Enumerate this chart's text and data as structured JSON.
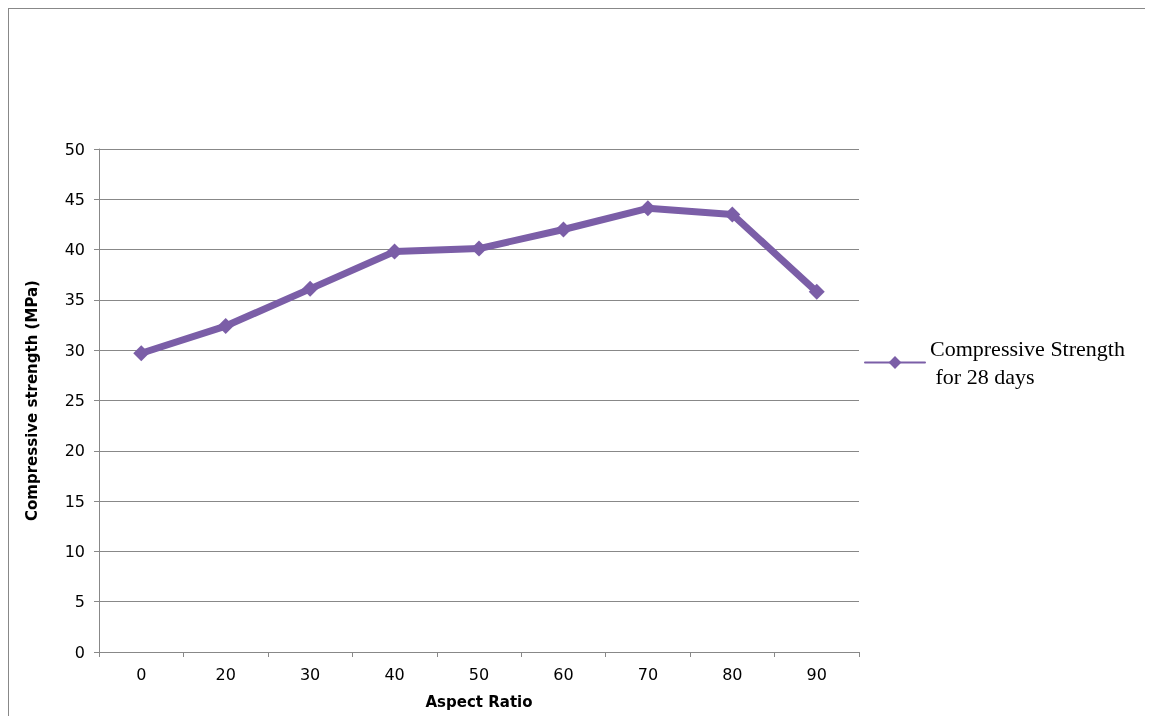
{
  "chart_data": {
    "type": "line",
    "xlabel": "Aspect Ratio",
    "ylabel": "Compressive strength (MPa)",
    "categories": [
      "0",
      "20",
      "30",
      "40",
      "50",
      "60",
      "70",
      "80",
      "90"
    ],
    "series": [
      {
        "name": "Compressive Strength for 28 days",
        "color": "#7b5ea7",
        "values": [
          29.7,
          32.4,
          36.1,
          39.8,
          40.1,
          42.0,
          44.1,
          43.5,
          35.8
        ]
      }
    ],
    "ylim": [
      0,
      50
    ],
    "yticks": [
      0,
      5,
      10,
      15,
      20,
      25,
      30,
      35,
      40,
      45,
      50
    ],
    "grid": "y",
    "legend": "right",
    "marker": "diamond",
    "line_style": "solid"
  }
}
